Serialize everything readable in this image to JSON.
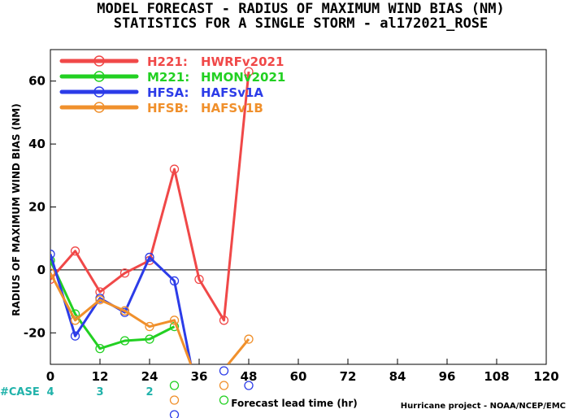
{
  "chart_data": {
    "type": "line",
    "title_line1": "MODEL FORECAST - RADIUS OF MAXIMUM WIND BIAS (NM)",
    "title_line2": "STATISTICS FOR A SINGLE STORM - al172021_ROSE",
    "ylabel": "RADIUS OF MAXIMUM WIND BIAS (NM)",
    "xlabel": "Forecast lead time (hr)",
    "footer": "Hurricane project - NOAA/NCEP/EMC",
    "xlim": [
      0,
      120
    ],
    "ylim": [
      -30,
      70
    ],
    "xticks": [
      0,
      12,
      24,
      36,
      48,
      60,
      72,
      84,
      96,
      108,
      120
    ],
    "yticks": [
      -20,
      0,
      20,
      40,
      60
    ],
    "zero_line": true,
    "legend_position": "top-left",
    "case": {
      "label": "#CASE",
      "entries": [
        {
          "x": 0,
          "count": "4"
        },
        {
          "x": 12,
          "count": "3"
        },
        {
          "x": 24,
          "count": "2"
        }
      ]
    },
    "series": [
      {
        "code": "H221:",
        "name": "HWRFv2021",
        "color": "#f04848",
        "points": [
          [
            0,
            -3
          ],
          [
            6,
            6
          ],
          [
            12,
            -7
          ],
          [
            18,
            -1
          ],
          [
            24,
            3
          ],
          [
            30,
            32
          ],
          [
            36,
            -3
          ],
          [
            42,
            -16
          ],
          [
            48,
            63
          ]
        ]
      },
      {
        "code": "M221:",
        "name": "HMONv2021",
        "color": "#22d022",
        "points": [
          [
            0,
            3
          ],
          [
            6,
            -14
          ],
          [
            12,
            -25
          ],
          [
            18,
            -22.5
          ],
          [
            24,
            -22
          ],
          [
            30,
            -18
          ]
        ]
      },
      {
        "code": "HFSA:",
        "name": "HAFSv1A",
        "color": "#2c3ce8",
        "points": [
          [
            0,
            5
          ],
          [
            6,
            -21
          ],
          [
            12,
            -9
          ],
          [
            18,
            -13.5
          ],
          [
            24,
            4
          ],
          [
            30,
            -3.5
          ],
          [
            34,
            -30
          ]
        ]
      },
      {
        "code": "HFSB:",
        "name": "HAFSv1B",
        "color": "#f0902c",
        "points": [
          [
            0,
            -1
          ],
          [
            6,
            -16
          ],
          [
            12,
            -9.5
          ],
          [
            18,
            -13
          ],
          [
            24,
            -18
          ],
          [
            30,
            -16
          ],
          [
            34,
            -30
          ]
        ],
        "extra_points": [
          [
            48,
            -22
          ],
          [
            43,
            -30
          ]
        ]
      }
    ],
    "below_axis_markers": [
      {
        "x": 42,
        "row": 0,
        "color": "#2c3ce8"
      },
      {
        "x": 30,
        "row": 1,
        "color": "#22d022"
      },
      {
        "x": 42,
        "row": 1,
        "color": "#f0902c"
      },
      {
        "x": 48,
        "row": 1,
        "color": "#2c3ce8"
      },
      {
        "x": 30,
        "row": 2,
        "color": "#f0902c"
      },
      {
        "x": 42,
        "row": 2,
        "color": "#22d022"
      },
      {
        "x": 30,
        "row": 3,
        "color": "#2c3ce8"
      }
    ]
  }
}
